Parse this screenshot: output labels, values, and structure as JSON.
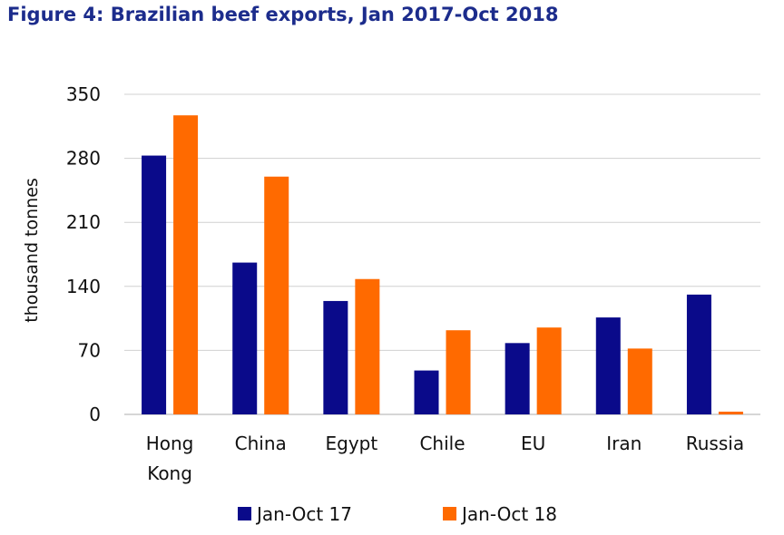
{
  "chart_data": {
    "type": "bar",
    "title": "Figure 4: Brazilian beef exports, Jan 2017-Oct 2018",
    "ylabel": "thousand tonnes",
    "xlabel": "",
    "ylim": [
      0,
      350
    ],
    "yticks": [
      0,
      70,
      140,
      210,
      280,
      350
    ],
    "grid": true,
    "legend_position": "bottom",
    "categories": [
      [
        "Hong",
        "Kong"
      ],
      [
        "China"
      ],
      [
        "Egypt"
      ],
      [
        "Chile"
      ],
      [
        "EU"
      ],
      [
        "Iran"
      ],
      [
        "Russia"
      ]
    ],
    "series": [
      {
        "name": "Jan-Oct 17",
        "color": "#0a0a8a",
        "values": [
          283,
          166,
          124,
          48,
          78,
          106,
          131
        ]
      },
      {
        "name": "Jan-Oct 18",
        "color": "#ff6a00",
        "values": [
          327,
          260,
          148,
          92,
          95,
          72,
          3
        ]
      }
    ]
  }
}
